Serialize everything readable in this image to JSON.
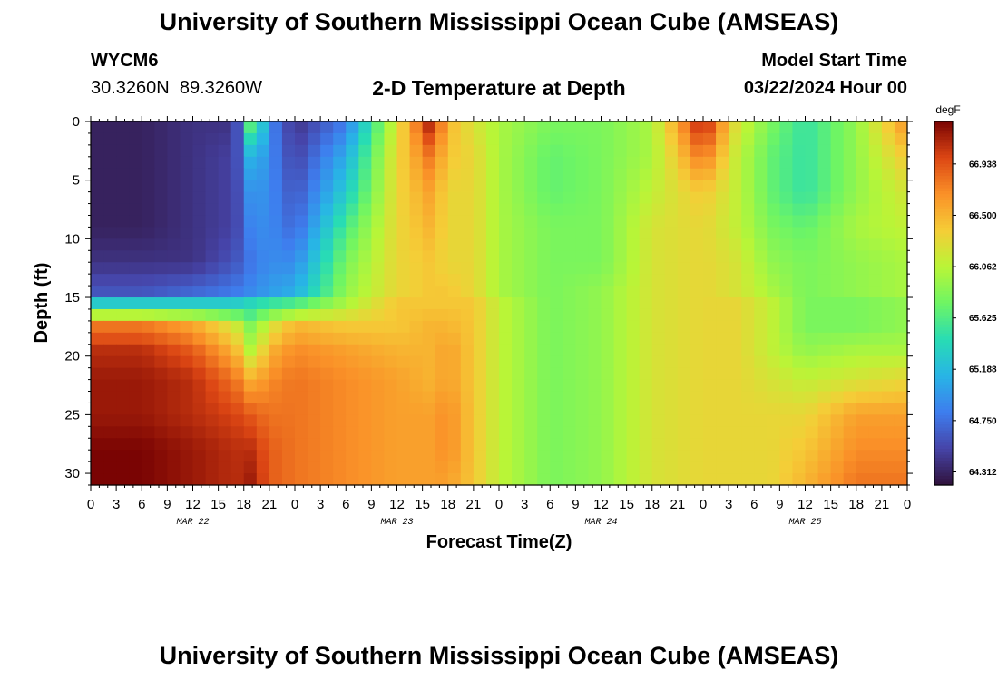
{
  "header": {
    "title": "University of Southern Mississippi Ocean Cube (AMSEAS)",
    "station_id": "WYCM6",
    "coordinates": "30.3260N  89.3260W",
    "subtitle": "2-D Temperature at Depth",
    "model_start_label": "Model Start Time",
    "model_start_value": "03/22/2024 Hour 00"
  },
  "footer": {
    "title": "University of Southern Mississippi Ocean Cube (AMSEAS)"
  },
  "chart_data": {
    "type": "heatmap",
    "title": "2-D Temperature at Depth",
    "xlabel": "Forecast Time(Z)",
    "ylabel": "Depth (ft)",
    "xlim": [
      0,
      96
    ],
    "ylim": [
      0,
      31
    ],
    "x_tick_labels": [
      "0",
      "3",
      "6",
      "9",
      "12",
      "15",
      "18",
      "21",
      "0",
      "3",
      "6",
      "9",
      "12",
      "15",
      "18",
      "21",
      "0",
      "3",
      "6",
      "9",
      "12",
      "15",
      "18",
      "21",
      "0",
      "3",
      "6",
      "9",
      "12",
      "15",
      "18",
      "21",
      "0"
    ],
    "y_ticks": [
      0,
      5,
      10,
      15,
      20,
      25,
      30
    ],
    "day_labels": [
      {
        "label": "MAR 22",
        "hour": 12
      },
      {
        "label": "MAR 23",
        "hour": 36
      },
      {
        "label": "MAR 24",
        "hour": 60
      },
      {
        "label": "MAR 25",
        "hour": 84
      }
    ],
    "colorbar": {
      "unit": "degF",
      "min": 64.2,
      "max": 67.3,
      "ticks": [
        66.938,
        66.5,
        66.062,
        65.625,
        65.188,
        64.75,
        64.312
      ],
      "tick_labels": [
        "66.938",
        "66.500",
        "66.062",
        "65.625",
        "65.188",
        "64.750",
        "64.312"
      ]
    },
    "grid_hours": [
      0,
      6,
      12,
      17,
      19,
      21,
      24,
      30,
      36,
      40,
      42,
      45,
      48,
      54,
      60,
      66,
      72,
      76,
      80,
      84,
      90,
      96
    ],
    "grid_depths": [
      0,
      3,
      6,
      9,
      12,
      14.5,
      15.5,
      17.5,
      19.5,
      22,
      25,
      28,
      31
    ],
    "values": [
      [
        64.3,
        64.3,
        64.4,
        64.4,
        65.9,
        64.9,
        64.4,
        64.8,
        66.2,
        67.2,
        66.5,
        66.2,
        66.0,
        65.8,
        65.8,
        66.0,
        67.2,
        66.2,
        65.8,
        65.5,
        65.9,
        66.7
      ],
      [
        64.3,
        64.3,
        64.4,
        64.5,
        65.2,
        64.9,
        64.5,
        65.1,
        66.3,
        66.8,
        66.4,
        66.3,
        66.0,
        65.7,
        65.8,
        66.0,
        66.8,
        66.1,
        65.7,
        65.5,
        65.9,
        66.4
      ],
      [
        64.3,
        64.3,
        64.4,
        64.5,
        65.0,
        64.9,
        64.6,
        65.3,
        66.3,
        66.6,
        66.3,
        66.3,
        66.0,
        65.7,
        65.8,
        66.1,
        66.4,
        66.1,
        65.7,
        65.5,
        65.9,
        66.2
      ],
      [
        64.3,
        64.3,
        64.4,
        64.5,
        64.9,
        64.9,
        64.7,
        65.6,
        66.3,
        66.5,
        66.3,
        66.3,
        66.0,
        65.8,
        65.8,
        66.2,
        66.3,
        66.1,
        65.8,
        65.7,
        66.0,
        66.1
      ],
      [
        64.4,
        64.4,
        64.4,
        64.6,
        64.8,
        64.9,
        64.9,
        65.8,
        66.3,
        66.4,
        66.3,
        66.3,
        66.0,
        65.8,
        65.8,
        66.2,
        66.3,
        66.2,
        65.9,
        65.8,
        65.9,
        66.0
      ],
      [
        64.6,
        64.6,
        64.7,
        64.8,
        64.9,
        65.0,
        65.1,
        65.9,
        66.3,
        66.4,
        66.4,
        66.3,
        66.0,
        65.8,
        65.9,
        66.2,
        66.3,
        66.2,
        66.0,
        65.8,
        65.9,
        66.0
      ],
      [
        65.3,
        65.3,
        65.3,
        65.3,
        65.4,
        65.5,
        65.6,
        66.0,
        66.4,
        66.4,
        66.4,
        66.4,
        66.1,
        65.8,
        65.9,
        66.2,
        66.3,
        66.3,
        66.1,
        65.8,
        65.8,
        65.9
      ],
      [
        66.8,
        66.8,
        66.6,
        66.2,
        65.8,
        66.2,
        66.5,
        66.4,
        66.4,
        66.5,
        66.5,
        66.4,
        66.1,
        65.8,
        65.9,
        66.2,
        66.3,
        66.3,
        66.1,
        65.8,
        65.8,
        65.9
      ],
      [
        67.1,
        67.1,
        66.9,
        66.5,
        66.0,
        66.5,
        66.7,
        66.6,
        66.5,
        66.5,
        66.6,
        66.4,
        66.1,
        65.8,
        65.9,
        66.2,
        66.3,
        66.3,
        66.1,
        65.9,
        66.0,
        66.0
      ],
      [
        67.2,
        67.2,
        67.1,
        66.8,
        66.5,
        66.7,
        66.8,
        66.7,
        66.6,
        66.5,
        66.6,
        66.4,
        66.1,
        65.8,
        65.9,
        66.2,
        66.3,
        66.3,
        66.2,
        66.1,
        66.2,
        66.3
      ],
      [
        67.2,
        67.2,
        67.1,
        67.0,
        66.9,
        66.8,
        66.8,
        66.7,
        66.6,
        66.6,
        66.7,
        66.4,
        66.1,
        65.8,
        65.9,
        66.2,
        66.3,
        66.3,
        66.3,
        66.3,
        66.6,
        66.6
      ],
      [
        67.3,
        67.3,
        67.2,
        67.1,
        67.1,
        66.9,
        66.8,
        66.7,
        66.6,
        66.6,
        66.7,
        66.4,
        66.1,
        65.8,
        65.9,
        66.2,
        66.3,
        66.3,
        66.3,
        66.4,
        66.7,
        66.7
      ],
      [
        67.3,
        67.3,
        67.2,
        67.1,
        67.2,
        66.9,
        66.8,
        66.7,
        66.6,
        66.6,
        66.6,
        66.4,
        66.1,
        65.8,
        65.9,
        66.2,
        66.3,
        66.3,
        66.3,
        66.5,
        66.8,
        66.8
      ]
    ]
  }
}
